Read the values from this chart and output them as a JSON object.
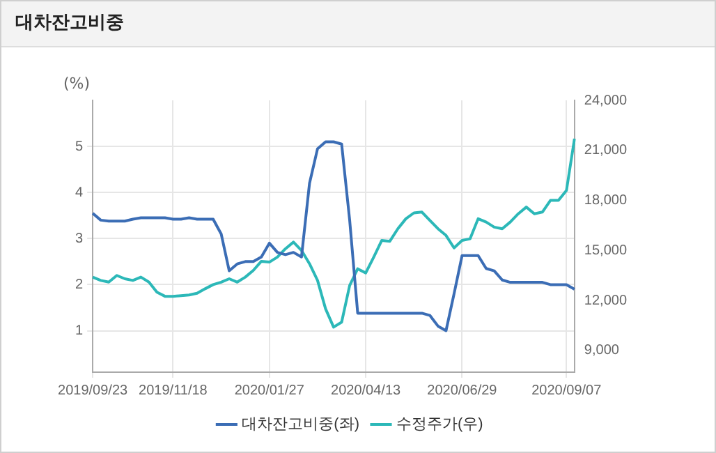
{
  "chart_data": {
    "type": "line",
    "title": "대차잔고비중",
    "ylabel": "(%)",
    "categories": [
      "2019/09/23",
      null,
      null,
      null,
      null,
      null,
      null,
      null,
      null,
      null,
      "2019/11/18",
      null,
      null,
      null,
      null,
      null,
      null,
      null,
      null,
      null,
      null,
      null,
      "2020/01/27",
      null,
      null,
      null,
      null,
      null,
      null,
      null,
      null,
      null,
      null,
      null,
      "2020/04/13",
      null,
      null,
      null,
      null,
      null,
      null,
      null,
      null,
      null,
      null,
      null,
      "2020/06/29",
      null,
      null,
      null,
      null,
      null,
      null,
      null,
      null,
      null,
      null,
      null,
      null,
      "2020/09/07",
      null
    ],
    "series": [
      {
        "name": "대차잔고비중(좌)",
        "color": "#3b6db5",
        "values": [
          3.55,
          3.4,
          3.38,
          3.38,
          3.38,
          3.42,
          3.45,
          3.45,
          3.45,
          3.45,
          3.42,
          3.42,
          3.45,
          3.42,
          3.42,
          3.42,
          3.1,
          2.3,
          2.45,
          2.5,
          2.5,
          2.6,
          2.9,
          2.7,
          2.65,
          2.7,
          2.6,
          4.2,
          4.95,
          5.1,
          5.1,
          5.05,
          3.4,
          1.38,
          1.38,
          1.38,
          1.38,
          1.38,
          1.38,
          1.38,
          1.38,
          1.38,
          1.33,
          1.1,
          1.0,
          1.8,
          2.63,
          2.63,
          2.63,
          2.35,
          2.3,
          2.1,
          2.05,
          2.05,
          2.05,
          2.05,
          2.05,
          2.0,
          2.0,
          2.0,
          1.9
        ]
      },
      {
        "name": "수정주가(우)",
        "color": "#2cb8b8",
        "axis": "y2",
        "values": [
          13400,
          13200,
          13100,
          13500,
          13300,
          13200,
          13400,
          13100,
          12500,
          12250,
          12250,
          12290,
          12330,
          12430,
          12700,
          12950,
          13100,
          13300,
          13100,
          13400,
          13800,
          14350,
          14300,
          14600,
          15100,
          15500,
          15000,
          14200,
          13200,
          11500,
          10400,
          10700,
          12900,
          13900,
          13650,
          14600,
          15600,
          15550,
          16300,
          16900,
          17250,
          17300,
          16800,
          16300,
          15900,
          15150,
          15600,
          15700,
          16900,
          16700,
          16400,
          16300,
          16700,
          17200,
          17600,
          17200,
          17300,
          18000,
          18000,
          18600,
          21700
        ]
      }
    ],
    "ylim": [
      0.1,
      6
    ],
    "yticks": [
      1,
      2,
      3,
      4,
      5
    ],
    "y2lim": [
      7700,
      24000
    ],
    "y2ticks": [
      {
        "value": 9000,
        "label": "9,000"
      },
      {
        "value": 12000,
        "label": "12,000"
      },
      {
        "value": 15000,
        "label": "15,000"
      },
      {
        "value": 18000,
        "label": "18,000"
      },
      {
        "value": 21000,
        "label": "21,000"
      },
      {
        "value": 24000,
        "label": "24,000"
      }
    ],
    "grid": true,
    "legend": "bottom"
  }
}
